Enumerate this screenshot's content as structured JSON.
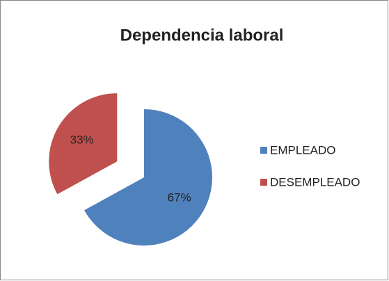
{
  "chart_data": {
    "type": "pie",
    "title": "Dependencia laboral",
    "categories": [
      "EMPLEADO",
      "DESEMPLEADO"
    ],
    "values": [
      67,
      33
    ],
    "value_labels": [
      "67%",
      "33%"
    ],
    "colors": [
      "#4f81bd",
      "#c0504d"
    ],
    "legend": "right"
  }
}
